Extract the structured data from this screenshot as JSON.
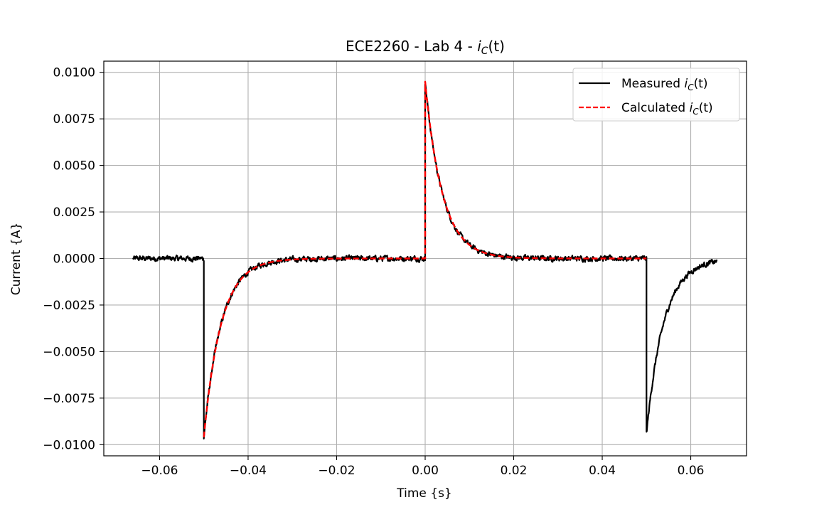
{
  "chart_data": {
    "type": "line",
    "title": "ECE2260 - Lab 4 - ",
    "title_math": "iC(t)",
    "xlabel": "Time {s}",
    "ylabel": "Current {A}",
    "xlim": [
      -0.0726,
      0.0726
    ],
    "ylim": [
      -0.0106,
      0.0106
    ],
    "xticks": [
      -0.06,
      -0.04,
      -0.02,
      0.0,
      0.02,
      0.04,
      0.06
    ],
    "xtick_labels": [
      "−0.06",
      "−0.04",
      "−0.02",
      "0.00",
      "0.02",
      "0.04",
      "0.06"
    ],
    "yticks": [
      0.01,
      0.0075,
      0.005,
      0.0025,
      0.0,
      -0.0025,
      -0.005,
      -0.0075,
      -0.01
    ],
    "ytick_labels": [
      "0.0100",
      "0.0075",
      "0.0050",
      "0.0025",
      "0.0000",
      "−0.0025",
      "−0.0050",
      "−0.0075",
      "−0.0100"
    ],
    "grid": true,
    "legend_position": "upper-right",
    "series": [
      {
        "name": "Measured iC(t)",
        "color": "#000000",
        "style": "solid",
        "x_range": [
          -0.066,
          0.066
        ],
        "model": "exponential pulse response with noise",
        "tau": 0.0039,
        "events": [
          {
            "t": -0.05,
            "amplitude": -0.0096
          },
          {
            "t": 0.0,
            "amplitude": 0.0095
          },
          {
            "t": 0.05,
            "amplitude": -0.0094
          }
        ],
        "noise_amplitude": 0.00025
      },
      {
        "name": "Calculated iC(t)",
        "color": "#ff0000",
        "style": "dashed",
        "x_range": [
          -0.05,
          0.05
        ],
        "model": "exponential pulse response",
        "tau": 0.0039,
        "events": [
          {
            "t": -0.05,
            "amplitude": -0.0096
          },
          {
            "t": 0.0,
            "amplitude": 0.0095
          }
        ]
      }
    ]
  },
  "legend": {
    "measured_prefix": "Measured ",
    "calculated_prefix": "Calculated ",
    "math_symbol": "i",
    "math_sub": "C",
    "math_suffix": "(t)"
  }
}
